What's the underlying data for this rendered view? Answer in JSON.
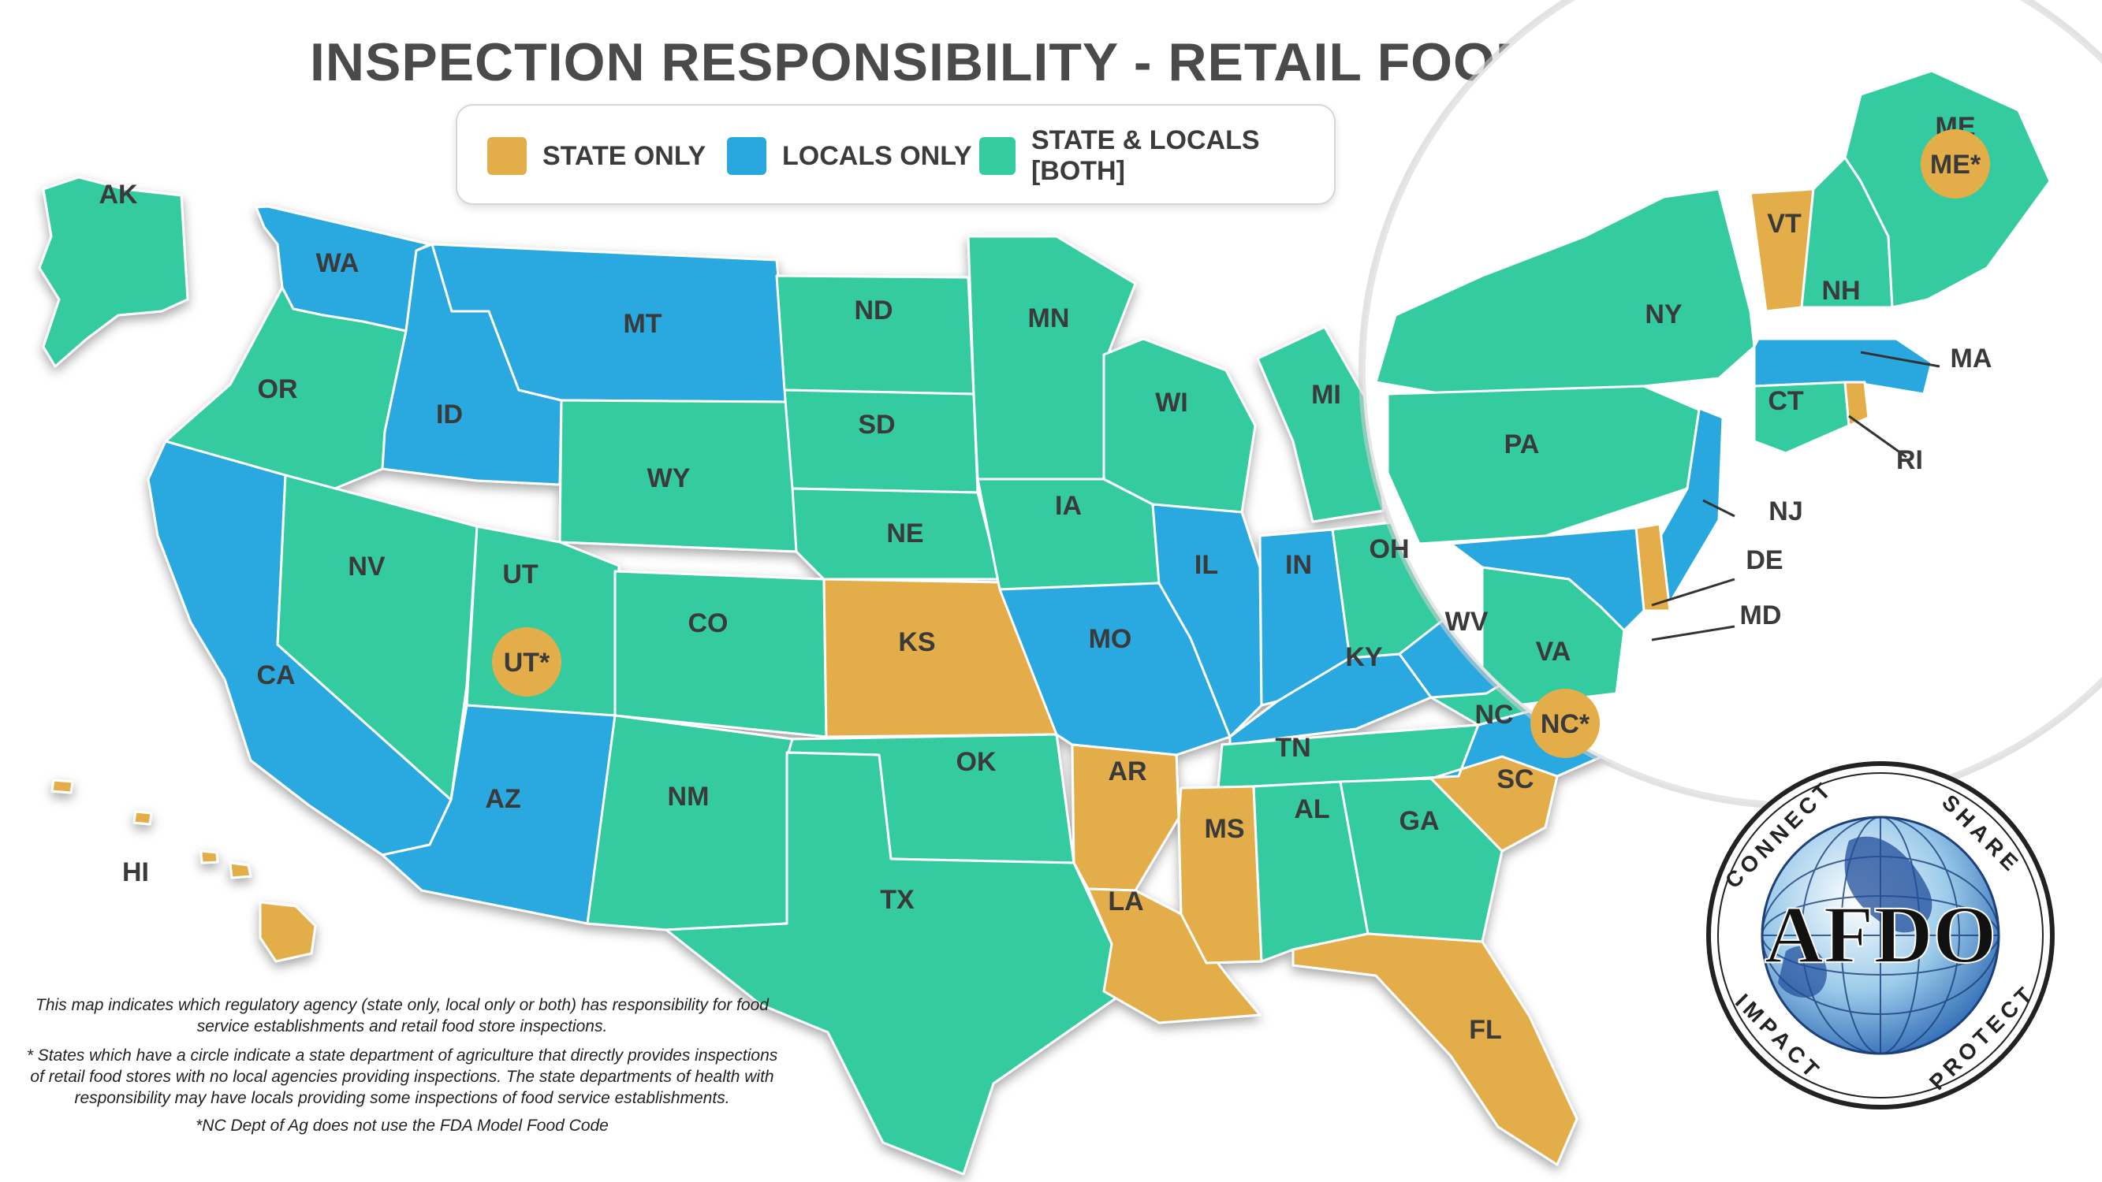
{
  "title": "INSPECTION RESPONSIBILITY - RETAIL FOOD",
  "legend": [
    {
      "key": "state",
      "label": "STATE ONLY",
      "color": "#e3ad4a"
    },
    {
      "key": "local",
      "label": "LOCALS ONLY",
      "color": "#29a8e0"
    },
    {
      "key": "both",
      "label": "STATE & LOCALS [BOTH]",
      "color": "#34cba0"
    }
  ],
  "colors": {
    "state": "#e3ad4a",
    "local": "#29a8e0",
    "both": "#34cba0",
    "border": "#ffffff"
  },
  "states": {
    "WA": "local",
    "OR": "both",
    "CA": "local",
    "ID": "local",
    "NV": "both",
    "MT": "local",
    "WY": "both",
    "UT": "both",
    "AZ": "local",
    "CO": "both",
    "NM": "both",
    "ND": "both",
    "SD": "both",
    "NE": "both",
    "KS": "state",
    "OK": "both",
    "TX": "both",
    "MN": "both",
    "IA": "both",
    "MO": "local",
    "AR": "state",
    "LA": "state",
    "WI": "both",
    "IL": "local",
    "MI": "both",
    "IN": "local",
    "OH": "both",
    "KY": "local",
    "TN": "both",
    "MS": "state",
    "AL": "both",
    "GA": "both",
    "FL": "state",
    "SC": "state",
    "NC": "local",
    "VA": "both",
    "WV": "local",
    "AK": "both",
    "HI": "state",
    "ME": "both",
    "VT": "state",
    "NH": "both",
    "NY": "both",
    "MA": "local",
    "CT": "both",
    "RI": "state",
    "PA": "both",
    "NJ": "local",
    "DE": "state",
    "MD": "local"
  },
  "state_labels": [
    "WA",
    "OR",
    "CA",
    "ID",
    "NV",
    "MT",
    "WY",
    "UT",
    "AZ",
    "CO",
    "NM",
    "ND",
    "SD",
    "NE",
    "KS",
    "OK",
    "TX",
    "MN",
    "IA",
    "MO",
    "AR",
    "LA",
    "WI",
    "IL",
    "MI",
    "IN",
    "OH",
    "KY",
    "TN",
    "MS",
    "AL",
    "GA",
    "FL",
    "SC",
    "NC",
    "VA",
    "WV",
    "AK",
    "HI",
    "ME",
    "VT",
    "NH",
    "NY",
    "MA",
    "CT",
    "RI",
    "PA",
    "NJ",
    "DE",
    "MD"
  ],
  "circled_labels": [
    "UT*",
    "NC*",
    "ME*"
  ],
  "logo": {
    "name": "AFDO",
    "words": [
      "CONNECT",
      "SHARE",
      "PROTECT",
      "IMPACT"
    ]
  },
  "notes": [
    "This map indicates which regulatory agency (state only, local only or both) has responsibility for food service establishments and retail food store inspections.",
    "* States which have a circle indicate a state department of agriculture that directly provides inspections of retail food stores with no local agencies providing inspections. The state departments of health with responsibility may have locals providing some inspections of food service establishments.",
    "*NC Dept of Ag does not use the FDA Model Food Code"
  ]
}
